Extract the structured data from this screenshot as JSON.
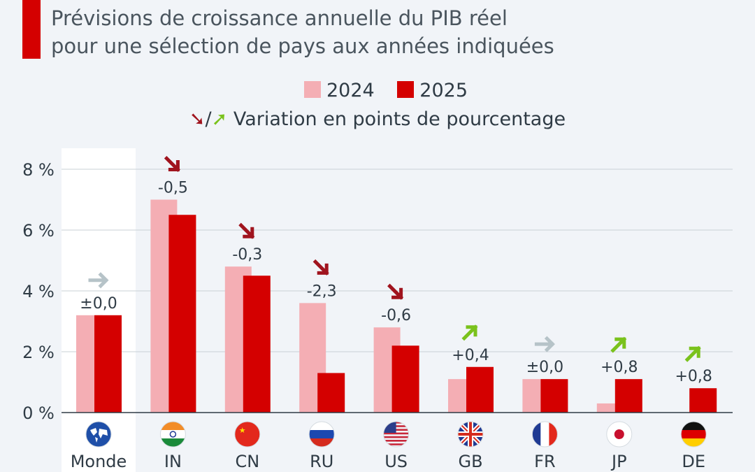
{
  "chart_data": {
    "type": "bar",
    "title": "Prévisions de croissance annuelle du PIB réel",
    "subtitle": "pour une sélection de pays aux années indiquées",
    "note": "Variation en points de pourcentage",
    "note_separator": "/",
    "categories": [
      "Monde",
      "IN",
      "CN",
      "RU",
      "US",
      "GB",
      "FR",
      "JP",
      "DE"
    ],
    "series": [
      {
        "name": "2024",
        "color": "#f4aeb4",
        "values": [
          3.2,
          7.0,
          4.8,
          3.6,
          2.8,
          1.1,
          1.1,
          0.3,
          0.0
        ]
      },
      {
        "name": "2025",
        "color": "#d40000",
        "values": [
          3.2,
          6.5,
          4.5,
          1.3,
          2.2,
          1.5,
          1.1,
          1.1,
          0.8
        ]
      }
    ],
    "change_labels": [
      "±0,0",
      "-0,5",
      "-0,3",
      "-2,3",
      "-0,6",
      "+0,4",
      "±0,0",
      "+0,8",
      "+0,8"
    ],
    "change_direction": [
      "flat",
      "down",
      "down",
      "down",
      "down",
      "up",
      "flat",
      "up",
      "up"
    ],
    "arrow_colors": {
      "down": "#a0141e",
      "up": "#7ac21c",
      "flat": "#b6c3c8"
    },
    "ylim": [
      0,
      8
    ],
    "yticks": [
      0,
      2,
      4,
      6,
      8
    ],
    "ytick_labels": [
      "0 %",
      "2 %",
      "4 %",
      "6 %",
      "8 %"
    ],
    "grid": true,
    "legend_placement": "top-center",
    "flag_icons": [
      "globe-icon",
      "flag-india-icon",
      "flag-china-icon",
      "flag-russia-icon",
      "flag-usa-icon",
      "flag-uk-icon",
      "flag-france-icon",
      "flag-japan-icon",
      "flag-germany-icon"
    ]
  }
}
